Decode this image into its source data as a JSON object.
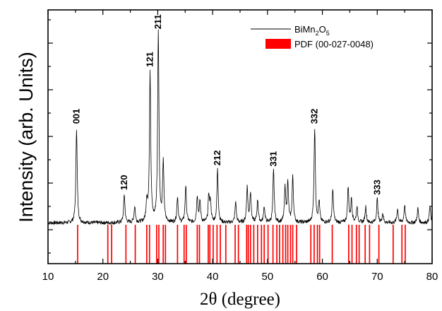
{
  "chart_data": {
    "type": "line",
    "xlabel": "2θ (degree)",
    "ylabel": "Intensity (arb. Units)",
    "xlim": [
      10,
      80
    ],
    "x_ticks": [
      10,
      20,
      30,
      40,
      50,
      60,
      70,
      80
    ],
    "y_ticks_labeled": false,
    "grid": false,
    "legend_position": "top-right",
    "colors": {
      "pattern": "#000000",
      "reference": "#ff0000"
    },
    "legend": {
      "pattern": {
        "text": "BiMn",
        "sub1": "2",
        "mid": "O",
        "sub2": "5"
      },
      "reference": "PDF (00-027-0048)"
    },
    "series": [
      {
        "name": "BiMn2O5",
        "style": "line",
        "baseline": 0.05,
        "peaks": [
          [
            15.2,
            1.0
          ],
          [
            23.9,
            0.3
          ],
          [
            25.8,
            0.17
          ],
          [
            28.0,
            0.22
          ],
          [
            28.6,
            1.6
          ],
          [
            30.1,
            2.0
          ],
          [
            31.0,
            0.62
          ],
          [
            33.6,
            0.27
          ],
          [
            35.1,
            0.39
          ],
          [
            37.2,
            0.28
          ],
          [
            37.7,
            0.22
          ],
          [
            39.3,
            0.28
          ],
          [
            39.6,
            0.21
          ],
          [
            40.9,
            0.56
          ],
          [
            44.2,
            0.22
          ],
          [
            46.3,
            0.37
          ],
          [
            46.9,
            0.32
          ],
          [
            48.2,
            0.24
          ],
          [
            49.4,
            0.17
          ],
          [
            51.1,
            0.55
          ],
          [
            53.2,
            0.36
          ],
          [
            53.7,
            0.41
          ],
          [
            54.6,
            0.48
          ],
          [
            58.6,
            1.0
          ],
          [
            59.4,
            0.22
          ],
          [
            61.9,
            0.35
          ],
          [
            64.7,
            0.37
          ],
          [
            65.3,
            0.25
          ],
          [
            66.3,
            0.17
          ],
          [
            67.9,
            0.17
          ],
          [
            70.0,
            0.25
          ],
          [
            71.0,
            0.1
          ],
          [
            73.7,
            0.15
          ],
          [
            75.0,
            0.19
          ],
          [
            77.4,
            0.15
          ],
          [
            79.6,
            0.17
          ]
        ]
      },
      {
        "name": "PDF (00-027-0048)",
        "style": "stick",
        "positions": [
          15.4,
          20.9,
          21.6,
          24.2,
          25.9,
          28.0,
          28.5,
          29.8,
          30.2,
          31.0,
          31.4,
          33.6,
          34.8,
          35.2,
          37.2,
          37.6,
          39.2,
          39.5,
          40.1,
          40.8,
          41.4,
          42.4,
          44.1,
          44.7,
          46.2,
          46.5,
          46.9,
          47.5,
          48.2,
          48.9,
          49.4,
          50.1,
          51.0,
          51.7,
          52.2,
          52.8,
          53.3,
          53.7,
          54.2,
          54.6,
          55.3,
          57.9,
          58.5,
          59.1,
          59.5,
          61.8,
          64.8,
          65.4,
          66.2,
          66.7,
          67.8,
          68.6,
          70.3,
          72.9,
          74.5,
          75.1
        ]
      }
    ],
    "annotations": [
      {
        "text": "001",
        "x": 15.2
      },
      {
        "text": "120",
        "x": 23.9
      },
      {
        "text": "121",
        "x": 28.6
      },
      {
        "text": "211",
        "x": 30.1
      },
      {
        "text": "212",
        "x": 40.9
      },
      {
        "text": "331",
        "x": 51.1
      },
      {
        "text": "332",
        "x": 58.6
      },
      {
        "text": "333",
        "x": 70.0
      }
    ]
  }
}
